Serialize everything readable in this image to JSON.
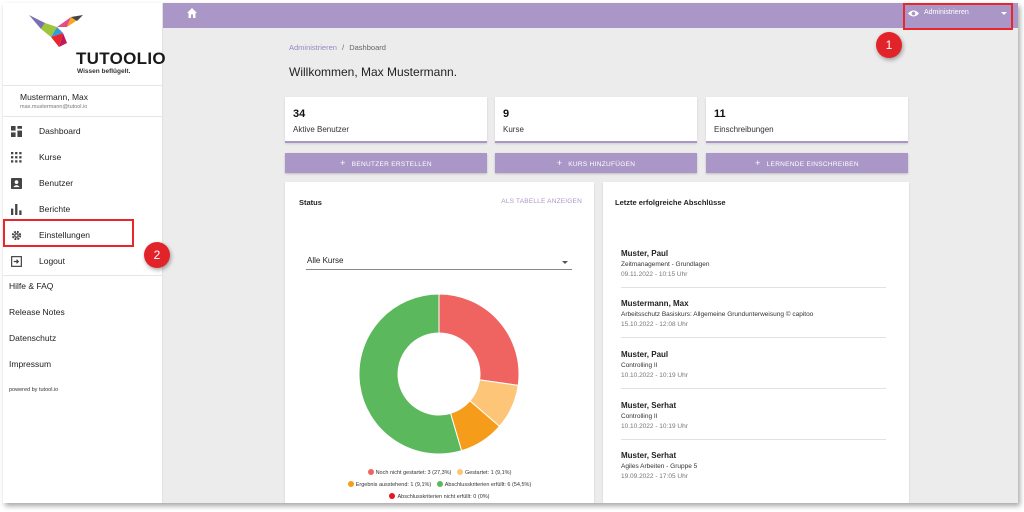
{
  "app": {
    "logo_text": "TUTOOLIO",
    "logo_tagline": "Wissen beflügelt.",
    "powered_by": "powered by tutool.io"
  },
  "user": {
    "name": "Mustermann, Max",
    "email": "max.mustermann@tutool.io"
  },
  "sidebar": {
    "items": [
      {
        "label": "Dashboard",
        "icon": "dashboard-icon"
      },
      {
        "label": "Kurse",
        "icon": "grid-icon"
      },
      {
        "label": "Benutzer",
        "icon": "person-card-icon"
      },
      {
        "label": "Berichte",
        "icon": "bar-chart-icon"
      },
      {
        "label": "Einstellungen",
        "icon": "gear-icon"
      },
      {
        "label": "Logout",
        "icon": "logout-icon"
      }
    ],
    "links": [
      "Hilfe & FAQ",
      "Release Notes",
      "Datenschutz",
      "Impressum"
    ]
  },
  "topbar": {
    "home_icon": "home-icon",
    "admin_label": "Administrieren",
    "admin_icon": "eye-icon"
  },
  "annotations": {
    "badge1": "1",
    "badge2": "2",
    "color": "#e3232a"
  },
  "breadcrumb": {
    "parent": "Administrieren",
    "separator": "/",
    "current": "Dashboard"
  },
  "welcome": "Willkommen, Max Mustermann.",
  "stats": [
    {
      "value": "34",
      "label": "Aktive Benutzer"
    },
    {
      "value": "9",
      "label": "Kurse"
    },
    {
      "value": "11",
      "label": "Einschreibungen"
    }
  ],
  "actions": [
    "BENUTZER ERSTELLEN",
    "KURS HINZUFÜGEN",
    "LERNENDE EINSCHREIBEN"
  ],
  "status": {
    "title": "Status",
    "table_link": "ALS TABELLE ANZEIGEN",
    "select_value": "Alle Kurse"
  },
  "chart_data": {
    "type": "pie",
    "donut": true,
    "title": "",
    "slices": [
      {
        "label": "Noch nicht gestartet",
        "count": 3,
        "percent": 27.3,
        "color": "#ef6461",
        "legend": "Noch nicht gestartet: 3 (27,3%)"
      },
      {
        "label": "Gestartet",
        "count": 1,
        "percent": 9.1,
        "color": "#fdc577",
        "legend": "Gestartet: 1 (9,1%)"
      },
      {
        "label": "Ergebnis ausstehend",
        "count": 1,
        "percent": 9.1,
        "color": "#f59d1a",
        "legend": "Ergebnis ausstehend: 1 (9,1%)"
      },
      {
        "label": "Abschlusskriterien erfüllt",
        "count": 6,
        "percent": 54.5,
        "color": "#5cb85c",
        "legend": "Abschlusskriterien erfüllt: 6 (54,5%)"
      },
      {
        "label": "Abschlusskriterien nicht erfüllt",
        "count": 0,
        "percent": 0,
        "color": "#e8171c",
        "legend": "Abschlusskriterien nicht erfüllt: 0 (0%)"
      }
    ],
    "legend_placement": "bottom"
  },
  "recent": {
    "title": "Letzte erfolgreiche Abschlüsse",
    "entries": [
      {
        "name": "Muster, Paul",
        "course": "Zeitmanagement - Grundlagen",
        "date": "09.11.2022 - 10:15 Uhr"
      },
      {
        "name": "Mustermann, Max",
        "course": "Arbeitsschutz Basiskurs: Allgemeine Grundunterweisung © capitoo",
        "date": "15.10.2022 - 12:08 Uhr"
      },
      {
        "name": "Muster, Paul",
        "course": "Controlling II",
        "date": "10.10.2022 - 10:19 Uhr"
      },
      {
        "name": "Muster, Serhat",
        "course": "Controlling II",
        "date": "10.10.2022 - 10:19 Uhr"
      },
      {
        "name": "Muster, Serhat",
        "course": "Agiles Arbeiten - Gruppe 5",
        "date": "19.09.2022 - 17:05 Uhr"
      }
    ]
  }
}
